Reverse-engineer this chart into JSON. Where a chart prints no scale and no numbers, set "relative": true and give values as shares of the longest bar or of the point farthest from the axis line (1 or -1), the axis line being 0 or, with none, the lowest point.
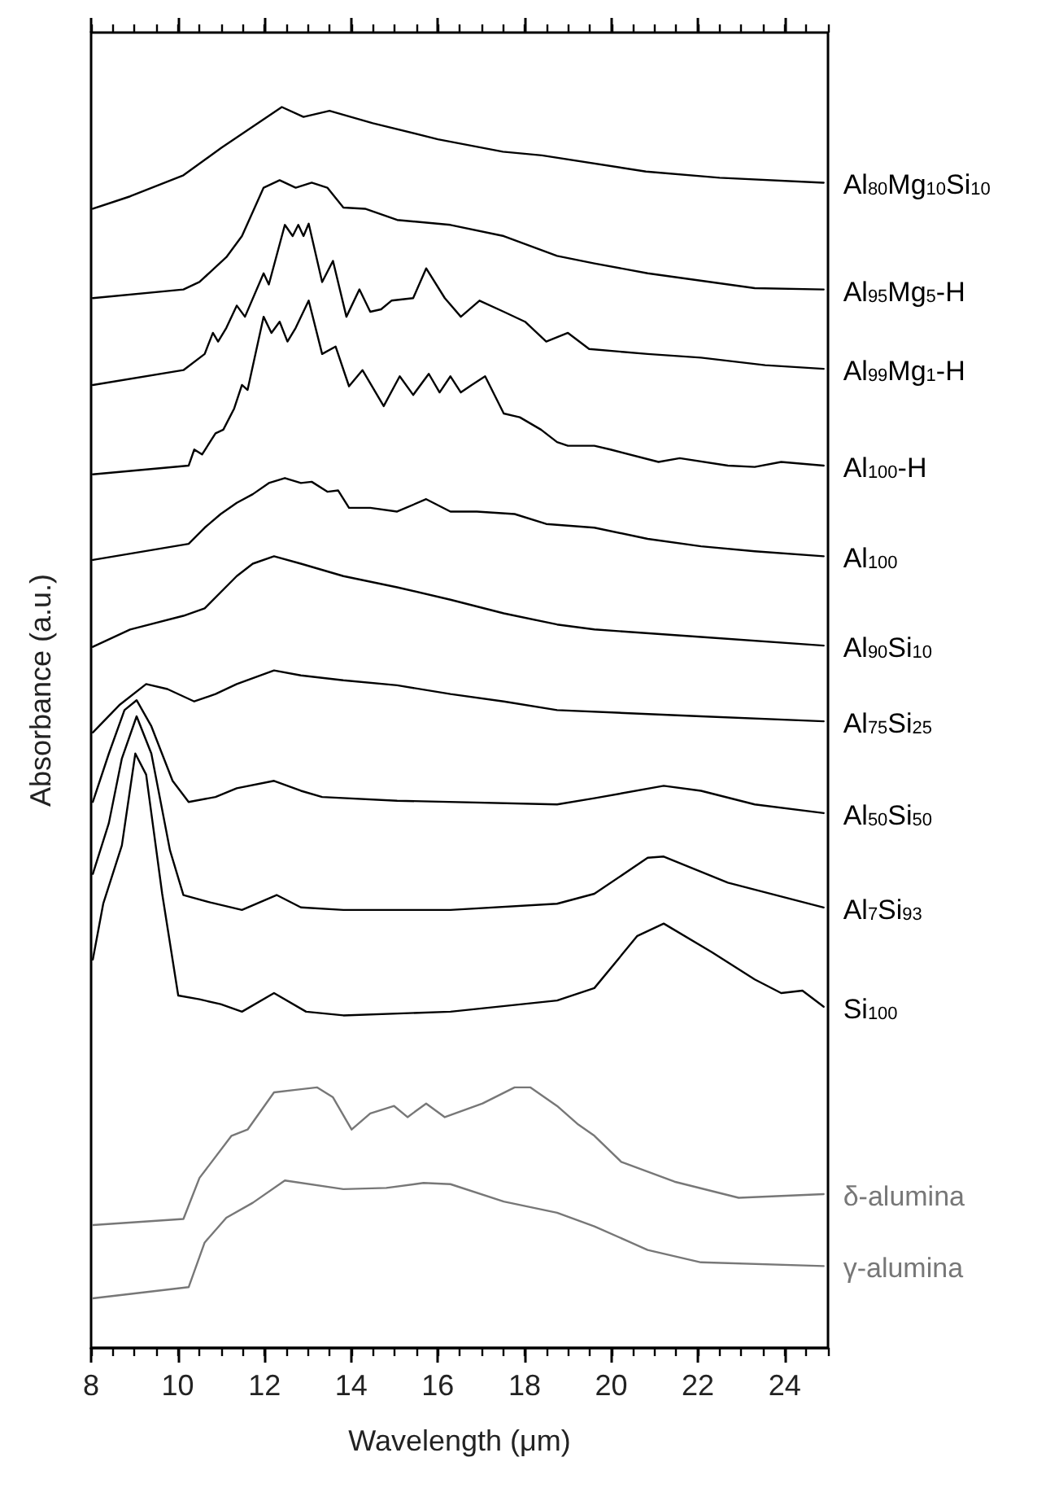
{
  "chart_data": {
    "type": "line",
    "relative": true,
    "xlabel": "Wavelength (μm)",
    "ylabel": "Absorbance (a.u.)",
    "xlim": [
      8,
      25
    ],
    "xticks": [
      8,
      10,
      12,
      14,
      16,
      18,
      20,
      22,
      24
    ],
    "marker": "none",
    "line_style": "solid",
    "series": [
      {
        "name": "Al$_{80}$Mg$_{10}$Si$_{10}$",
        "color": "#000000",
        "x": [
          8.04,
          8.9,
          10.13,
          11,
          12.4,
          12.9,
          13.5,
          14.5,
          16,
          17.5,
          18.4,
          20.8,
          22.5,
          24.9
        ],
        "values": [
          0.918,
          0.928,
          0.945,
          0.967,
          1,
          0.992,
          0.997,
          0.987,
          0.974,
          0.964,
          0.961,
          0.948,
          0.943,
          0.939
        ]
      },
      {
        "name": "Al$_{95}$Mg$_{5}$-H",
        "color": "#000000",
        "x": [
          8.04,
          10.13,
          10.5,
          11.12,
          11.48,
          11.98,
          12.35,
          12.72,
          13.09,
          13.45,
          13.82,
          14.32,
          15.06,
          16.29,
          17.52,
          18.75,
          19.61,
          20.84,
          23.31,
          24.9
        ],
        "values": [
          0.846,
          0.853,
          0.859,
          0.879,
          0.896,
          0.935,
          0.941,
          0.935,
          0.939,
          0.935,
          0.919,
          0.918,
          0.909,
          0.905,
          0.896,
          0.88,
          0.874,
          0.866,
          0.854,
          0.853
        ]
      },
      {
        "name": "Al$_{99}$Mg$_{1}$-H",
        "color": "#000000",
        "x": [
          8.04,
          10.13,
          10.62,
          10.81,
          10.93,
          11.12,
          11.36,
          11.55,
          11.98,
          12.1,
          12.47,
          12.65,
          12.78,
          12.9,
          13.02,
          13.33,
          13.58,
          13.89,
          14.19,
          14.44,
          14.69,
          14.93,
          15.43,
          15.73,
          16.16,
          16.53,
          16.96,
          17.52,
          18.01,
          18.5,
          19,
          19.49,
          20.84,
          22.07,
          23.55,
          24.9
        ],
        "values": [
          0.776,
          0.788,
          0.801,
          0.818,
          0.811,
          0.822,
          0.84,
          0.831,
          0.866,
          0.857,
          0.905,
          0.896,
          0.905,
          0.896,
          0.906,
          0.859,
          0.876,
          0.831,
          0.853,
          0.835,
          0.837,
          0.844,
          0.846,
          0.87,
          0.846,
          0.831,
          0.844,
          0.835,
          0.827,
          0.811,
          0.818,
          0.805,
          0.801,
          0.798,
          0.792,
          0.789
        ]
      },
      {
        "name": "Al$_{100}$-H",
        "color": "#000000",
        "x": [
          8.04,
          10.25,
          10.38,
          10.56,
          10.87,
          11.05,
          11.3,
          11.48,
          11.61,
          11.98,
          12.16,
          12.35,
          12.53,
          12.72,
          13.02,
          13.33,
          13.64,
          13.95,
          14.26,
          14.75,
          15.12,
          15.43,
          15.79,
          16.04,
          16.29,
          16.53,
          16.78,
          17.09,
          17.52,
          17.89,
          18.38,
          18.75,
          19,
          19.61,
          19.98,
          21.09,
          21.58,
          22.69,
          23.31,
          23.92,
          24.9
        ],
        "values": [
          0.704,
          0.711,
          0.724,
          0.72,
          0.737,
          0.74,
          0.757,
          0.776,
          0.772,
          0.831,
          0.818,
          0.827,
          0.811,
          0.822,
          0.844,
          0.801,
          0.807,
          0.775,
          0.788,
          0.759,
          0.783,
          0.768,
          0.785,
          0.77,
          0.783,
          0.77,
          0.776,
          0.783,
          0.753,
          0.75,
          0.74,
          0.73,
          0.727,
          0.727,
          0.724,
          0.714,
          0.717,
          0.711,
          0.71,
          0.714,
          0.711
        ]
      },
      {
        "name": "Al$_{100}$",
        "color": "#000000",
        "x": [
          8.04,
          10.25,
          10.62,
          10.99,
          11.36,
          11.73,
          12.1,
          12.47,
          12.84,
          13.09,
          13.45,
          13.7,
          13.95,
          14.44,
          15.06,
          15.73,
          16.29,
          16.9,
          17.77,
          18.5,
          19.61,
          20.84,
          22.07,
          23.31,
          24.9
        ],
        "values": [
          0.635,
          0.648,
          0.661,
          0.672,
          0.681,
          0.688,
          0.697,
          0.701,
          0.697,
          0.698,
          0.69,
          0.691,
          0.677,
          0.677,
          0.674,
          0.684,
          0.674,
          0.674,
          0.672,
          0.664,
          0.661,
          0.652,
          0.646,
          0.642,
          0.638
        ]
      },
      {
        "name": "Al$_{90}$Si$_{10}$",
        "color": "#000000",
        "x": [
          8.04,
          8.9,
          10.13,
          10.62,
          11.36,
          11.73,
          12.22,
          12.84,
          13.82,
          15.06,
          16.29,
          17.52,
          18.75,
          19.61,
          22.07,
          24.9
        ],
        "values": [
          0.565,
          0.579,
          0.59,
          0.596,
          0.622,
          0.632,
          0.638,
          0.632,
          0.622,
          0.613,
          0.603,
          0.592,
          0.583,
          0.579,
          0.573,
          0.566
        ]
      },
      {
        "name": "Al$_{75}$Si$_{25}$",
        "color": "#000000",
        "x": [
          8.04,
          8.65,
          9.27,
          9.76,
          10.38,
          10.87,
          11.36,
          12.22,
          12.84,
          13.82,
          15.06,
          16.29,
          17.52,
          18.75,
          22.07,
          24.9
        ],
        "values": [
          0.496,
          0.518,
          0.535,
          0.531,
          0.521,
          0.527,
          0.535,
          0.546,
          0.542,
          0.538,
          0.534,
          0.527,
          0.521,
          0.514,
          0.509,
          0.505
        ]
      },
      {
        "name": "Al$_{50}$Si$_{50}$",
        "color": "#000000",
        "x": [
          8.04,
          8.41,
          8.77,
          9.05,
          9.39,
          9.88,
          10.25,
          10.87,
          11.36,
          12.22,
          12.84,
          13.33,
          15.06,
          18.75,
          19.61,
          21.21,
          22.07,
          23.31,
          24.9
        ],
        "values": [
          0.44,
          0.479,
          0.514,
          0.522,
          0.501,
          0.457,
          0.44,
          0.444,
          0.451,
          0.457,
          0.449,
          0.444,
          0.441,
          0.438,
          0.443,
          0.453,
          0.449,
          0.438,
          0.431
        ]
      },
      {
        "name": "Al$_{7}$Si$_{93}$",
        "color": "#000000",
        "x": [
          8.04,
          8.41,
          8.71,
          9.05,
          9.39,
          9.82,
          10.13,
          10.75,
          11.48,
          12.28,
          12.84,
          13.82,
          16.29,
          18.75,
          19.61,
          20.84,
          21.21,
          22.69,
          24.9
        ],
        "values": [
          0.382,
          0.423,
          0.475,
          0.509,
          0.479,
          0.401,
          0.365,
          0.359,
          0.353,
          0.365,
          0.355,
          0.353,
          0.353,
          0.358,
          0.366,
          0.395,
          0.396,
          0.375,
          0.355
        ]
      },
      {
        "name": "Si$_{100}$",
        "color": "#000000",
        "x": [
          8.04,
          8.28,
          8.71,
          9.02,
          9.27,
          9.64,
          10.01,
          10.5,
          10.99,
          11.48,
          12.22,
          12.96,
          13.82,
          16.29,
          18.75,
          19.61,
          20.6,
          21.21,
          22.32,
          23.31,
          23.92,
          24.41,
          24.9
        ],
        "values": [
          0.313,
          0.358,
          0.405,
          0.479,
          0.462,
          0.366,
          0.284,
          0.281,
          0.277,
          0.271,
          0.286,
          0.271,
          0.268,
          0.271,
          0.28,
          0.29,
          0.332,
          0.342,
          0.319,
          0.297,
          0.286,
          0.288,
          0.275
        ]
      },
      {
        "name": "δ-alumina",
        "color": "#777777",
        "x": [
          8.04,
          10.13,
          10.5,
          11.24,
          11.61,
          12.22,
          12.72,
          13.21,
          13.58,
          14.01,
          14.44,
          14.99,
          15.3,
          15.73,
          16.16,
          17.03,
          17.77,
          18.13,
          18.75,
          19.24,
          19.61,
          20.23,
          21.46,
          22.94,
          24.9
        ],
        "values": [
          0.099,
          0.104,
          0.137,
          0.171,
          0.176,
          0.206,
          0.208,
          0.21,
          0.202,
          0.176,
          0.189,
          0.195,
          0.186,
          0.197,
          0.186,
          0.197,
          0.21,
          0.21,
          0.195,
          0.18,
          0.171,
          0.15,
          0.134,
          0.121,
          0.124
        ]
      },
      {
        "name": "γ-alumina",
        "color": "#777777",
        "x": [
          8.04,
          10.25,
          10.62,
          11.12,
          11.73,
          12.47,
          13.82,
          14.81,
          15.67,
          16.29,
          17.52,
          18.75,
          19.61,
          20.84,
          22.07,
          24.9
        ],
        "values": [
          0.04,
          0.049,
          0.085,
          0.105,
          0.117,
          0.135,
          0.128,
          0.129,
          0.133,
          0.132,
          0.118,
          0.109,
          0.098,
          0.079,
          0.069,
          0.066
        ]
      }
    ]
  }
}
